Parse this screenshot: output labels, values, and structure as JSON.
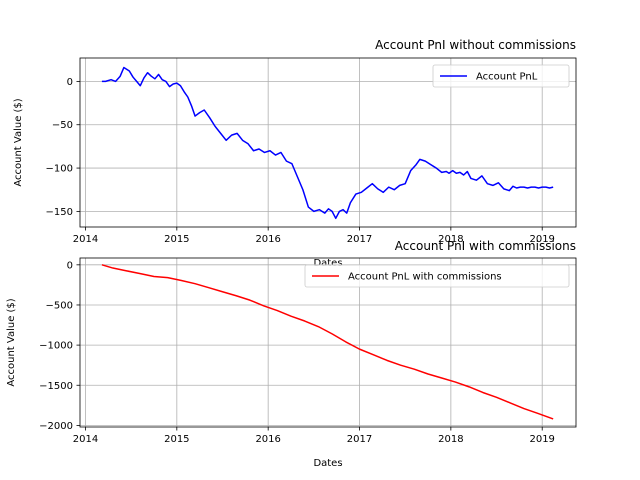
{
  "chart_data": [
    {
      "type": "line",
      "title": "Account PnI without commissions",
      "xlabel": "Dates",
      "ylabel": "Account Value ($)",
      "xlim": [
        2013.94,
        2019.37
      ],
      "ylim": [
        -168,
        27
      ],
      "xticks": [
        2014,
        2015,
        2016,
        2017,
        2018,
        2019
      ],
      "yticks": [
        0,
        -50,
        -100,
        -150
      ],
      "grid": true,
      "legend_position": "top-right",
      "series": [
        {
          "name": "Account PnL",
          "color": "#0000ff",
          "x": [
            2014.18,
            2014.22,
            2014.28,
            2014.33,
            2014.38,
            2014.42,
            2014.45,
            2014.48,
            2014.52,
            2014.56,
            2014.6,
            2014.64,
            2014.68,
            2014.72,
            2014.76,
            2014.8,
            2014.84,
            2014.88,
            2014.92,
            2014.96,
            2015.0,
            2015.04,
            2015.08,
            2015.12,
            2015.16,
            2015.2,
            2015.25,
            2015.3,
            2015.36,
            2015.42,
            2015.48,
            2015.54,
            2015.6,
            2015.66,
            2015.72,
            2015.78,
            2015.84,
            2015.9,
            2015.96,
            2016.02,
            2016.08,
            2016.14,
            2016.2,
            2016.26,
            2016.32,
            2016.38,
            2016.44,
            2016.5,
            2016.56,
            2016.62,
            2016.66,
            2016.7,
            2016.74,
            2016.78,
            2016.82,
            2016.86,
            2016.9,
            2016.96,
            2017.02,
            2017.08,
            2017.14,
            2017.2,
            2017.26,
            2017.32,
            2017.38,
            2017.44,
            2017.5,
            2017.56,
            2017.62,
            2017.66,
            2017.72,
            2017.78,
            2017.84,
            2017.9,
            2017.95,
            2017.98,
            2018.02,
            2018.06,
            2018.1,
            2018.14,
            2018.18,
            2018.22,
            2018.28,
            2018.34,
            2018.4,
            2018.46,
            2018.52,
            2018.58,
            2018.64,
            2018.68,
            2018.72,
            2018.76,
            2018.8,
            2018.84,
            2018.88,
            2018.92,
            2018.96,
            2019.0,
            2019.04,
            2019.08,
            2019.12
          ],
          "y": [
            0,
            0,
            2,
            0,
            6,
            16,
            14,
            12,
            5,
            0,
            -5,
            4,
            10,
            6,
            3,
            8,
            2,
            0,
            -6,
            -3,
            -2,
            -5,
            -12,
            -18,
            -28,
            -40,
            -36,
            -33,
            -42,
            -52,
            -60,
            -68,
            -62,
            -60,
            -68,
            -72,
            -80,
            -78,
            -82,
            -80,
            -85,
            -82,
            -92,
            -95,
            -110,
            -125,
            -145,
            -150,
            -148,
            -152,
            -147,
            -150,
            -158,
            -150,
            -148,
            -152,
            -140,
            -130,
            -128,
            -123,
            -118,
            -124,
            -128,
            -122,
            -125,
            -120,
            -118,
            -103,
            -96,
            -90,
            -92,
            -96,
            -100,
            -105,
            -104,
            -106,
            -103,
            -106,
            -105,
            -108,
            -104,
            -112,
            -114,
            -109,
            -118,
            -120,
            -117,
            -124,
            -126,
            -121,
            -123,
            -122,
            -122,
            -123,
            -122,
            -122,
            -123,
            -122,
            -122,
            -123,
            -122
          ]
        }
      ]
    },
    {
      "type": "line",
      "title": "Account PnI with commissions",
      "xlabel": "Dates",
      "ylabel": "Account Value ($)",
      "xlim": [
        2013.94,
        2019.37
      ],
      "ylim": [
        -2020,
        85
      ],
      "xticks": [
        2014,
        2015,
        2016,
        2017,
        2018,
        2019
      ],
      "yticks": [
        0,
        -500,
        -1000,
        -1500,
        -2000
      ],
      "grid": true,
      "legend_position": "top-right",
      "series": [
        {
          "name": "Account PnL with commissions",
          "color": "#ff0000",
          "x": [
            2014.18,
            2014.3,
            2014.45,
            2014.6,
            2014.75,
            2014.9,
            2015.05,
            2015.2,
            2015.35,
            2015.5,
            2015.65,
            2015.8,
            2015.95,
            2016.1,
            2016.25,
            2016.4,
            2016.55,
            2016.7,
            2016.85,
            2017.0,
            2017.15,
            2017.3,
            2017.45,
            2017.6,
            2017.75,
            2017.9,
            2018.05,
            2018.2,
            2018.35,
            2018.5,
            2018.65,
            2018.8,
            2018.95,
            2019.12
          ],
          "y": [
            0,
            -40,
            -75,
            -110,
            -145,
            -160,
            -195,
            -235,
            -285,
            -335,
            -385,
            -440,
            -510,
            -570,
            -640,
            -700,
            -770,
            -860,
            -960,
            -1050,
            -1120,
            -1190,
            -1250,
            -1300,
            -1360,
            -1410,
            -1460,
            -1520,
            -1590,
            -1650,
            -1720,
            -1790,
            -1850,
            -1920
          ]
        }
      ]
    }
  ]
}
